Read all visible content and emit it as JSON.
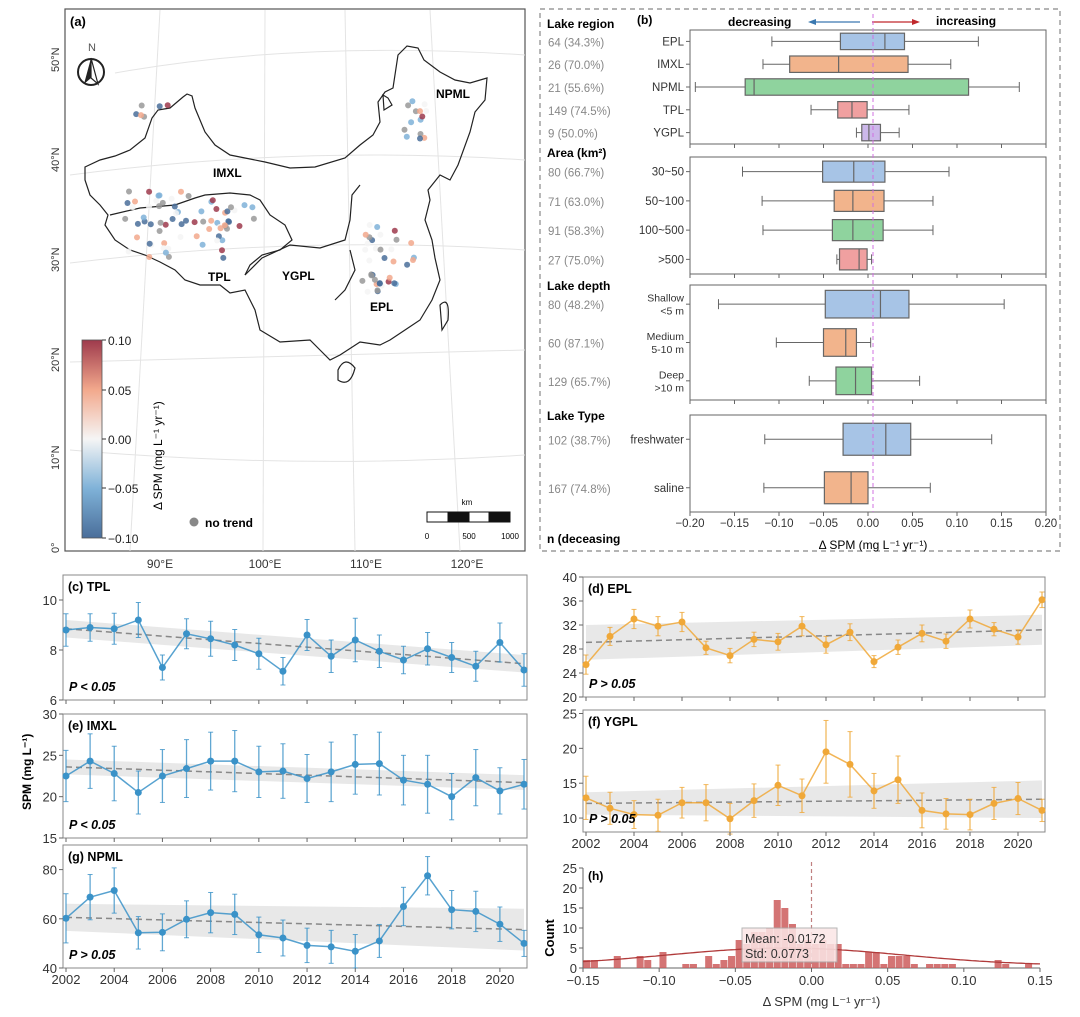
{
  "figure": {
    "panel_a": {
      "label": "(a)",
      "north_label": "N",
      "lat_ticks": [
        "50°N",
        "40°N",
        "30°N",
        "20°N",
        "10°N",
        "0°"
      ],
      "lon_ticks": [
        "90°E",
        "100°E",
        "110°E",
        "120°E"
      ],
      "regions": [
        "IMXL",
        "NPML",
        "TPL",
        "YGPL",
        "EPL"
      ],
      "colorbar": {
        "ticks": [
          "0.10",
          "0.05",
          "0.00",
          "−0.05",
          "−0.10"
        ],
        "label": "Δ SPM (mg L⁻¹ yr⁻¹)",
        "min": -0.1,
        "max": 0.1,
        "colors": [
          "#4a6e9a",
          "#7fb2d8",
          "#f5f5f5",
          "#f2a88c",
          "#9e3a4c"
        ]
      },
      "no_trend_label": "no trend",
      "scalebar": {
        "unit": "km",
        "ticks": [
          "0",
          "500",
          "1000"
        ]
      }
    },
    "panel_b": {
      "label": "(b)",
      "decreasing_label": "decreasing",
      "increasing_label": "increasing",
      "n_header": "n (deceasing",
      "xlabel": "Δ SPM (mg L⁻¹ yr⁻¹)",
      "xticks": [
        "−0.20",
        "−0.15",
        "−0.10",
        "−0.05",
        "0.00",
        "0.05",
        "0.10",
        "0.15",
        "0.20"
      ]
    }
  },
  "chart_data": [
    {
      "id": "b",
      "type": "boxplot",
      "title": "(b)",
      "xlabel": "Δ SPM (mg L⁻¹ yr⁻¹)",
      "xlim": [
        -0.2,
        0.2
      ],
      "groups": [
        {
          "name": "Lake region",
          "items": [
            {
              "label": "EPL",
              "n": "64 (34.3%)",
              "whislo": -0.108,
              "q1": -0.031,
              "med": 0.019,
              "q3": 0.041,
              "whishi": 0.124,
              "color": "#a7c4e6"
            },
            {
              "label": "IMXL",
              "n": "26 (70.0%)",
              "whislo": -0.118,
              "q1": -0.088,
              "med": -0.033,
              "q3": 0.045,
              "whishi": 0.093,
              "color": "#f2b48c"
            },
            {
              "label": "NPML",
              "n": "21 (55.6%)",
              "whislo": -0.194,
              "q1": -0.138,
              "med": -0.128,
              "q3": 0.113,
              "whishi": 0.17,
              "color": "#8fd39e"
            },
            {
              "label": "TPL",
              "n": "149 (74.5%)",
              "whislo": -0.064,
              "q1": -0.034,
              "med": -0.018,
              "q3": -0.001,
              "whishi": 0.046,
              "color": "#f0a0a0"
            },
            {
              "label": "YGPL",
              "n": "9 (50.0%)",
              "whislo": -0.013,
              "q1": -0.007,
              "med": 0.001,
              "q3": 0.014,
              "whishi": 0.035,
              "color": "#ccb8ea"
            }
          ]
        },
        {
          "name": "Area (km²)",
          "items": [
            {
              "label": "30~50",
              "n": "80 (66.7%)",
              "whislo": -0.141,
              "q1": -0.051,
              "med": -0.016,
              "q3": 0.019,
              "whishi": 0.091,
              "color": "#a7c4e6"
            },
            {
              "label": "50~100",
              "n": "71 (63.0%)",
              "whislo": -0.119,
              "q1": -0.038,
              "med": -0.017,
              "q3": 0.018,
              "whishi": 0.073,
              "color": "#f2b48c"
            },
            {
              "label": "100~500",
              "n": "91 (58.3%)",
              "whislo": -0.118,
              "q1": -0.04,
              "med": -0.017,
              "q3": 0.017,
              "whishi": 0.073,
              "color": "#8fd39e"
            },
            {
              "label": ">500",
              "n": "27 (75.0%)",
              "whislo": -0.035,
              "q1": -0.032,
              "med": -0.01,
              "q3": -0.001,
              "whishi": 0.004,
              "color": "#f0a0a0"
            }
          ]
        },
        {
          "name": "Lake depth",
          "items": [
            {
              "label": "Shallow\n<5 m",
              "n": "80 (48.2%)",
              "whislo": -0.168,
              "q1": -0.048,
              "med": 0.014,
              "q3": 0.046,
              "whishi": 0.153,
              "color": "#a7c4e6"
            },
            {
              "label": "Medium\n5-10 m",
              "n": "60 (87.1%)",
              "whislo": -0.103,
              "q1": -0.05,
              "med": -0.025,
              "q3": -0.013,
              "whishi": 0.003,
              "color": "#f2b48c"
            },
            {
              "label": "Deep\n>10 m",
              "n": "129 (65.7%)",
              "whislo": -0.066,
              "q1": -0.036,
              "med": -0.014,
              "q3": 0.004,
              "whishi": 0.058,
              "color": "#8fd39e"
            }
          ]
        },
        {
          "name": "Lake Type",
          "items": [
            {
              "label": "freshwater",
              "n": "102 (38.7%)",
              "whislo": -0.116,
              "q1": -0.028,
              "med": 0.02,
              "q3": 0.048,
              "whishi": 0.139,
              "color": "#a7c4e6"
            },
            {
              "label": "saline",
              "n": "167 (74.8%)",
              "whislo": -0.117,
              "q1": -0.049,
              "med": -0.019,
              "q3": 0.0,
              "whishi": 0.07,
              "color": "#f2b48c"
            }
          ]
        }
      ]
    },
    {
      "id": "c",
      "type": "line",
      "title": "(c) TPL",
      "p_label": "P < 0.05",
      "x": [
        2002,
        2003,
        2004,
        2005,
        2006,
        2007,
        2008,
        2009,
        2010,
        2011,
        2012,
        2013,
        2014,
        2015,
        2016,
        2017,
        2018,
        2019,
        2020,
        2021
      ],
      "y": [
        8.8,
        8.9,
        8.85,
        9.2,
        7.3,
        8.65,
        8.45,
        8.2,
        7.85,
        7.15,
        8.6,
        7.75,
        8.4,
        7.95,
        7.6,
        8.05,
        7.7,
        7.35,
        8.3,
        7.2
      ],
      "err": [
        0.65,
        0.55,
        0.62,
        0.7,
        0.5,
        0.6,
        0.7,
        0.62,
        0.62,
        0.55,
        0.62,
        0.65,
        0.87,
        0.65,
        0.55,
        0.65,
        0.6,
        0.6,
        0.78,
        0.65
      ],
      "trend": [
        8.85,
        7.45
      ],
      "band": 0.35,
      "ylim": [
        6,
        11
      ],
      "yticks": [
        6,
        8,
        10
      ],
      "color": "#3a92c8"
    },
    {
      "id": "e",
      "type": "line",
      "title": "(e) IMXL",
      "p_label": "P < 0.05",
      "ylabel": "SPM (mg L⁻¹)",
      "x": [
        2002,
        2003,
        2004,
        2005,
        2006,
        2007,
        2008,
        2009,
        2010,
        2011,
        2012,
        2013,
        2014,
        2015,
        2016,
        2017,
        2018,
        2019,
        2020,
        2021
      ],
      "y": [
        22.5,
        24.3,
        22.8,
        20.5,
        22.5,
        23.4,
        24.3,
        24.3,
        23.0,
        23.1,
        22.2,
        23.0,
        23.9,
        24.0,
        22.0,
        21.5,
        20.0,
        22.3,
        20.7,
        21.5
      ],
      "err": [
        3.1,
        3.3,
        3.3,
        2.6,
        3.2,
        3.5,
        3.5,
        3.7,
        3.1,
        3.3,
        2.9,
        3.6,
        3.6,
        3.8,
        3.0,
        3.5,
        2.8,
        3.4,
        2.8,
        3.0
      ],
      "trend": [
        23.6,
        21.7
      ],
      "band": 0.9,
      "ylim": [
        15,
        30
      ],
      "yticks": [
        15,
        20,
        25,
        30
      ],
      "color": "#3a92c8"
    },
    {
      "id": "g",
      "type": "line",
      "title": "(g) NPML",
      "p_label": "P > 0.05",
      "x": [
        2002,
        2003,
        2004,
        2005,
        2006,
        2007,
        2008,
        2009,
        2010,
        2011,
        2012,
        2013,
        2014,
        2015,
        2016,
        2017,
        2018,
        2019,
        2020,
        2021
      ],
      "y": [
        60.2,
        68.8,
        71.5,
        54.3,
        54.5,
        59.8,
        62.5,
        61.8,
        53.5,
        52.2,
        49.2,
        48.6,
        46.8,
        51.0,
        65.0,
        77.5,
        63.7,
        63.0,
        57.8,
        50.0
      ],
      "err": [
        10,
        9.2,
        9.2,
        6.6,
        7.5,
        7.5,
        8.2,
        8.2,
        7.2,
        7.3,
        7.0,
        6.7,
        6.8,
        6.7,
        7.8,
        7.8,
        7.8,
        8.2,
        7.0,
        5.3
      ],
      "trend": [
        60.6,
        55.6
      ],
      "band_start": 5.5,
      "band_end": 8.5,
      "ylim": [
        40,
        90
      ],
      "yticks": [
        40,
        60,
        80
      ],
      "color": "#3a92c8",
      "xticks": [
        2002,
        2004,
        2006,
        2008,
        2010,
        2012,
        2014,
        2016,
        2018,
        2020
      ]
    },
    {
      "id": "d",
      "type": "line",
      "title": "(d) EPL",
      "p_label": "P > 0.05",
      "x": [
        2002,
        2003,
        2004,
        2005,
        2006,
        2007,
        2008,
        2009,
        2010,
        2011,
        2012,
        2013,
        2014,
        2015,
        2016,
        2017,
        2018,
        2019,
        2020,
        2021
      ],
      "y": [
        25.4,
        30.1,
        33.0,
        31.8,
        32.5,
        28.2,
        26.9,
        29.6,
        29.2,
        31.8,
        28.7,
        30.8,
        25.9,
        28.3,
        30.6,
        29.3,
        33.0,
        31.3,
        30.0,
        36.2
      ],
      "err": [
        1.6,
        1.5,
        1.6,
        1.6,
        1.6,
        1.1,
        1.2,
        1.2,
        1.4,
        1.6,
        1.4,
        1.4,
        1.0,
        1.2,
        1.4,
        1.2,
        1.5,
        1.1,
        1.2,
        1.3
      ],
      "trend": [
        29.1,
        31.2
      ],
      "band_start": 2.9,
      "band_end": 2.5,
      "ylim": [
        20,
        40
      ],
      "yticks": [
        20,
        24,
        28,
        32,
        36,
        40
      ],
      "color": "#f0a838"
    },
    {
      "id": "f",
      "type": "line",
      "title": "(f) YGPL",
      "p_label": "P > 0.05",
      "x": [
        2002,
        2003,
        2004,
        2005,
        2006,
        2007,
        2008,
        2009,
        2010,
        2011,
        2012,
        2013,
        2014,
        2015,
        2016,
        2017,
        2018,
        2019,
        2020,
        2021
      ],
      "y": [
        12.9,
        11.4,
        10.5,
        10.4,
        12.2,
        12.2,
        9.9,
        12.5,
        14.7,
        13.2,
        19.5,
        17.7,
        13.9,
        15.5,
        11.1,
        10.6,
        10.5,
        12.1,
        12.8,
        11.1
      ],
      "err": [
        3.1,
        2.3,
        2.0,
        2.3,
        2.2,
        2.6,
        2.2,
        2.4,
        2.9,
        2.4,
        4.5,
        4.7,
        2.5,
        3.4,
        2.5,
        2.2,
        2.2,
        2.3,
        2.3,
        1.6
      ],
      "trend": [
        12.1,
        12.7
      ],
      "band_start": 1.6,
      "band_end": 2.7,
      "ylim": [
        8,
        25.5
      ],
      "yticks": [
        10,
        15,
        20,
        25
      ],
      "color": "#f0a838",
      "xticks": [
        2002,
        2004,
        2006,
        2008,
        2010,
        2012,
        2014,
        2016,
        2018,
        2020
      ]
    },
    {
      "id": "h",
      "type": "histogram",
      "title": "(h)",
      "xlabel": "Δ SPM (mg L⁻¹ yr⁻¹)",
      "ylabel": "Count",
      "xlim": [
        -0.15,
        0.15
      ],
      "ylim": [
        0,
        25
      ],
      "xticks": [
        "−0.15",
        "−0.10",
        "−0.05",
        "0.00",
        "0.05",
        "0.10",
        "0.15"
      ],
      "yticks": [
        0,
        5,
        10,
        15,
        20,
        25
      ],
      "bin_start": -0.15,
      "bin_width": 0.005,
      "counts": [
        2,
        2,
        0,
        0,
        3,
        0,
        0,
        3,
        2,
        0,
        4,
        0,
        0,
        1,
        1,
        0,
        3,
        1,
        2,
        3,
        7,
        6,
        9,
        9,
        10,
        17,
        15,
        11,
        6,
        7,
        6,
        7,
        6,
        6,
        1,
        1,
        1,
        4,
        4,
        1,
        3,
        3,
        3,
        1,
        0,
        1,
        1,
        1,
        1,
        0,
        0,
        0,
        0,
        0,
        2,
        1,
        0,
        0,
        1,
        0
      ],
      "annotation": {
        "mean_label": "Mean: -0.0172",
        "std_label": "Std: 0.0773"
      },
      "mean": -0.0172,
      "std": 0.0773,
      "color": "#cd5c5c"
    }
  ]
}
